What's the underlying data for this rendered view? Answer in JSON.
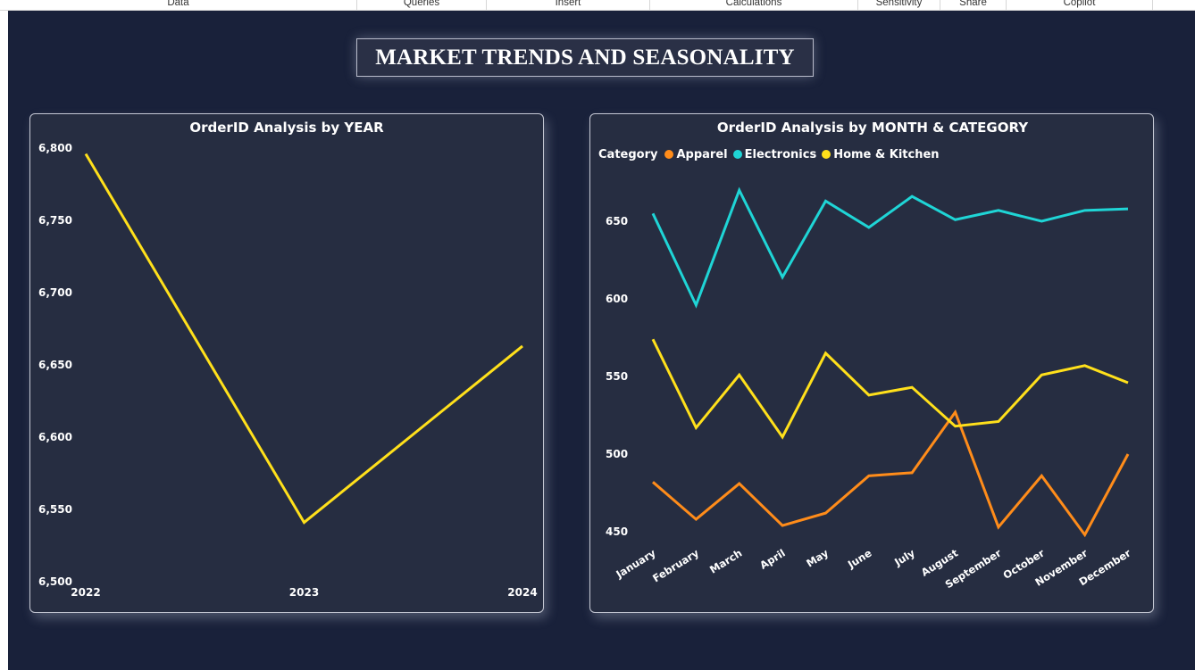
{
  "ribbon": {
    "tabs": [
      "Data",
      "Queries",
      "Insert",
      "Calculations",
      "Sensitivity",
      "Share",
      "Copilot"
    ]
  },
  "page": {
    "title": "MARKET TRENDS AND SEASONALITY"
  },
  "colors": {
    "background": "#19213a",
    "panel": "#262d41",
    "year_line": "#ffe01b",
    "apparel": "#ff8c1a",
    "electronics": "#1fd5d6",
    "home_kitchen": "#ffe01b"
  },
  "chart_data": [
    {
      "type": "line",
      "title": "OrderID Analysis by YEAR",
      "xlabel": "",
      "ylabel": "",
      "x": [
        "2022",
        "2023",
        "2024"
      ],
      "series": [
        {
          "values": [
            6796,
            6541,
            6663
          ]
        }
      ],
      "ylim": [
        6500,
        6800
      ],
      "yticks": [
        "6,500",
        "6,550",
        "6,600",
        "6,650",
        "6,700",
        "6,750",
        "6,800"
      ],
      "grid": false,
      "legend": "none"
    },
    {
      "type": "line",
      "title": "OrderID Analysis by MONTH & CATEGORY",
      "xlabel": "",
      "ylabel": "",
      "legend_title": "Category",
      "legend": "top-left",
      "categories": [
        "January",
        "February",
        "March",
        "April",
        "May",
        "June",
        "July",
        "August",
        "September",
        "October",
        "November",
        "December"
      ],
      "series": [
        {
          "name": "Apparel",
          "values": [
            482,
            458,
            481,
            454,
            462,
            486,
            488,
            527,
            453,
            486,
            448,
            500
          ]
        },
        {
          "name": "Electronics",
          "values": [
            655,
            596,
            670,
            614,
            663,
            646,
            666,
            651,
            657,
            650,
            657,
            658
          ]
        },
        {
          "name": "Home & Kitchen",
          "values": [
            574,
            517,
            551,
            511,
            565,
            538,
            543,
            518,
            521,
            551,
            557,
            546
          ]
        }
      ],
      "ylim": [
        440,
        680
      ],
      "yticks": [
        "450",
        "500",
        "550",
        "600",
        "650"
      ],
      "grid": false
    }
  ]
}
